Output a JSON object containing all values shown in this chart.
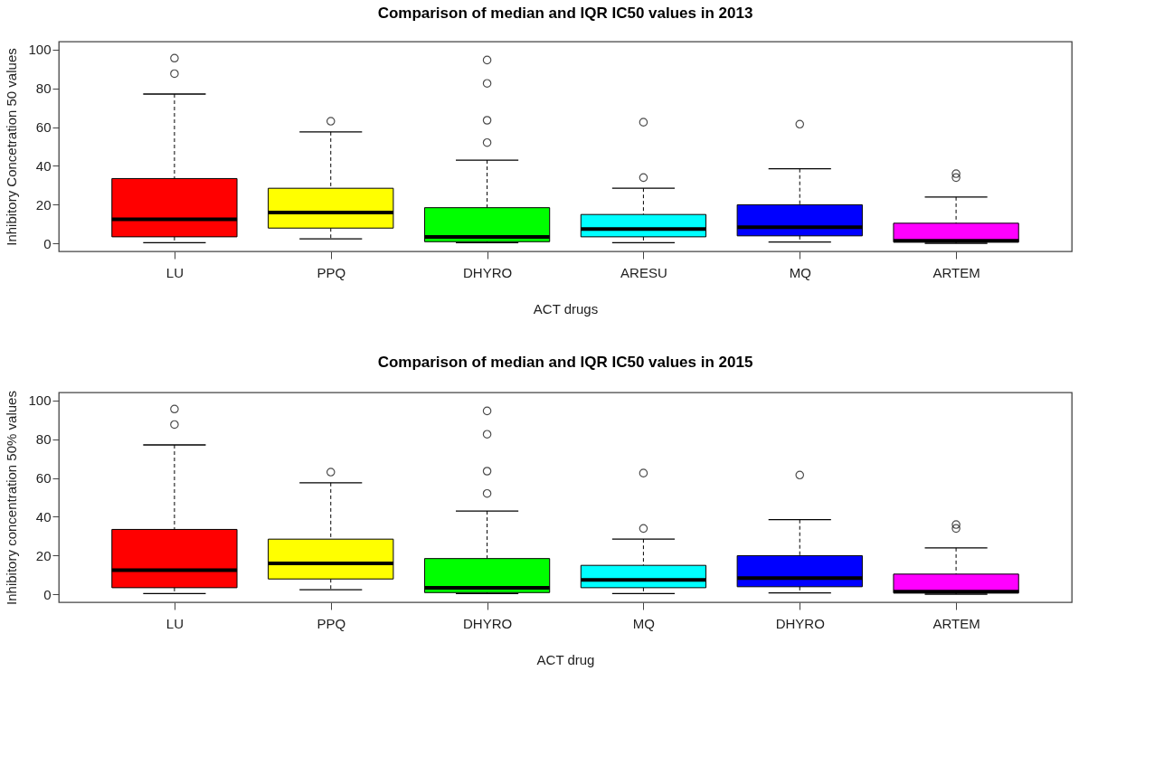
{
  "chart_data": [
    {
      "type": "box",
      "title": "Comparison of median and IQR IC50 values in 2013",
      "xlabel": "ACT drugs",
      "ylabel": "Inhibitory Concetration 50 values",
      "categories": [
        "LU",
        "PPQ",
        "DHYRO",
        "ARESU",
        "MQ",
        "ARTEM"
      ],
      "colors": [
        "#ff0000",
        "#ffff00",
        "#00ff00",
        "#00ffff",
        "#0000ff",
        "#ff00ff"
      ],
      "boxes": [
        {
          "low": 0.5,
          "q1": 3.5,
          "median": 12.5,
          "q3": 33.5,
          "high": 77,
          "outliers": [
            87.5,
            95.5
          ]
        },
        {
          "low": 2.5,
          "q1": 8,
          "median": 16,
          "q3": 28.5,
          "high": 57.5,
          "outliers": [
            63
          ]
        },
        {
          "low": 0.5,
          "q1": 1,
          "median": 3.5,
          "q3": 18.5,
          "high": 43,
          "outliers": [
            52,
            63.5,
            82.5,
            94.5
          ]
        },
        {
          "low": 0.5,
          "q1": 3.5,
          "median": 7.5,
          "q3": 15,
          "high": 28.5,
          "outliers": [
            34,
            62.5
          ]
        },
        {
          "low": 0.8,
          "q1": 4,
          "median": 8.5,
          "q3": 20,
          "high": 38.5,
          "outliers": [
            61.5
          ]
        },
        {
          "low": 0.2,
          "q1": 0.8,
          "median": 1.5,
          "q3": 10.5,
          "high": 24,
          "outliers": [
            34,
            36
          ]
        }
      ],
      "ylim": [
        -4,
        104
      ],
      "yticks": [
        0,
        20,
        40,
        60,
        80,
        100
      ],
      "grid": false
    },
    {
      "type": "box",
      "title": "Comparison of median and IQR IC50 values in 2015",
      "xlabel": "ACT drug",
      "ylabel": "Inhibitory concentration 50% values",
      "categories": [
        "LU",
        "PPQ",
        "DHYRO",
        "MQ",
        "DHYRO",
        "ARTEM"
      ],
      "colors": [
        "#ff0000",
        "#ffff00",
        "#00ff00",
        "#00ffff",
        "#0000ff",
        "#ff00ff"
      ],
      "boxes": [
        {
          "low": 0.5,
          "q1": 3.5,
          "median": 12.5,
          "q3": 33.5,
          "high": 77,
          "outliers": [
            87.5,
            95.5
          ]
        },
        {
          "low": 2.5,
          "q1": 8,
          "median": 16,
          "q3": 28.5,
          "high": 57.5,
          "outliers": [
            63
          ]
        },
        {
          "low": 0.5,
          "q1": 1,
          "median": 3.5,
          "q3": 18.5,
          "high": 43,
          "outliers": [
            52,
            63.5,
            82.5,
            94.5
          ]
        },
        {
          "low": 0.5,
          "q1": 3.5,
          "median": 7.5,
          "q3": 15,
          "high": 28.5,
          "outliers": [
            34,
            62.5
          ]
        },
        {
          "low": 0.8,
          "q1": 4,
          "median": 8.5,
          "q3": 20,
          "high": 38.5,
          "outliers": [
            61.5
          ]
        },
        {
          "low": 0.2,
          "q1": 0.8,
          "median": 1.5,
          "q3": 10.5,
          "high": 24,
          "outliers": [
            34,
            36
          ]
        }
      ],
      "ylim": [
        -4,
        104
      ],
      "yticks": [
        0,
        20,
        40,
        60,
        80,
        100
      ],
      "grid": false
    }
  ]
}
